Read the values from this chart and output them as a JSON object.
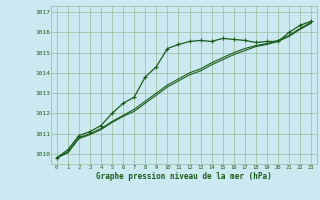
{
  "title": "Graphe pression niveau de la mer (hPa)",
  "background_color": "#cce8f0",
  "grid_color": "#99bb99",
  "line_color": "#1a5c1a",
  "marker_color": "#1a5c1a",
  "x_labels": [
    "0",
    "1",
    "2",
    "3",
    "4",
    "5",
    "6",
    "7",
    "8",
    "9",
    "10",
    "11",
    "12",
    "13",
    "14",
    "15",
    "16",
    "17",
    "18",
    "19",
    "20",
    "21",
    "22",
    "23"
  ],
  "ylim": [
    1009.5,
    1017.3
  ],
  "yticks": [
    1010,
    1011,
    1012,
    1013,
    1014,
    1015,
    1016,
    1017
  ],
  "line1": [
    1009.8,
    1010.2,
    1010.9,
    1011.1,
    1011.4,
    1012.0,
    1012.5,
    1012.8,
    1013.8,
    1014.3,
    1015.2,
    1015.4,
    1015.55,
    1015.6,
    1015.55,
    1015.7,
    1015.65,
    1015.6,
    1015.5,
    1015.55,
    1015.55,
    1016.0,
    1016.35,
    1016.55
  ],
  "line2": [
    1009.8,
    1010.1,
    1010.8,
    1011.0,
    1011.25,
    1011.6,
    1011.9,
    1012.2,
    1012.6,
    1013.0,
    1013.4,
    1013.7,
    1014.0,
    1014.2,
    1014.5,
    1014.75,
    1015.0,
    1015.2,
    1015.35,
    1015.45,
    1015.6,
    1015.85,
    1016.2,
    1016.5
  ],
  "line3": [
    1009.8,
    1010.05,
    1010.75,
    1010.95,
    1011.2,
    1011.55,
    1011.85,
    1012.1,
    1012.5,
    1012.9,
    1013.3,
    1013.6,
    1013.9,
    1014.1,
    1014.4,
    1014.65,
    1014.9,
    1015.1,
    1015.3,
    1015.4,
    1015.55,
    1015.8,
    1016.15,
    1016.45
  ]
}
